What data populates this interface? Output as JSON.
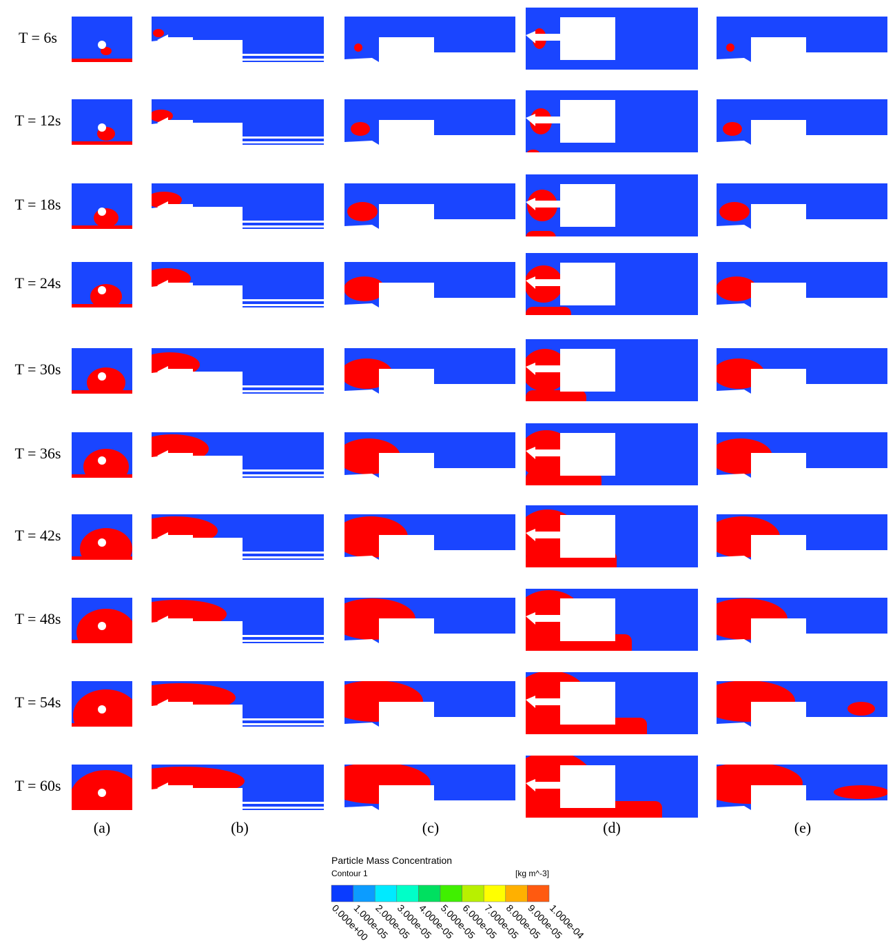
{
  "rows": [
    "T = 6s",
    "T = 12s",
    "T = 18s",
    "T = 24s",
    "T = 30s",
    "T = 36s",
    "T = 42s",
    "T = 48s",
    "T = 54s",
    "T = 60s"
  ],
  "columns": [
    "(a)",
    "(b)",
    "(c)",
    "(d)",
    "(e)"
  ],
  "legend": {
    "title": "Particle Mass Concentration",
    "subtitle": "Contour 1",
    "unit": "[kg m^-3]",
    "ticks": [
      "0.000e+00",
      "1.000e-05",
      "2.000e-05",
      "3.000e-05",
      "4.000e-05",
      "5.000e-05",
      "6.000e-05",
      "7.000e-05",
      "8.000e-05",
      "9.000e-05",
      "1.000e-04"
    ],
    "colors": [
      "#0a3cff",
      "#0c9cff",
      "#00eaff",
      "#00ffc8",
      "#00e060",
      "#40f000",
      "#b8f000",
      "#ffff00",
      "#ffb000",
      "#ff5a10"
    ]
  }
}
